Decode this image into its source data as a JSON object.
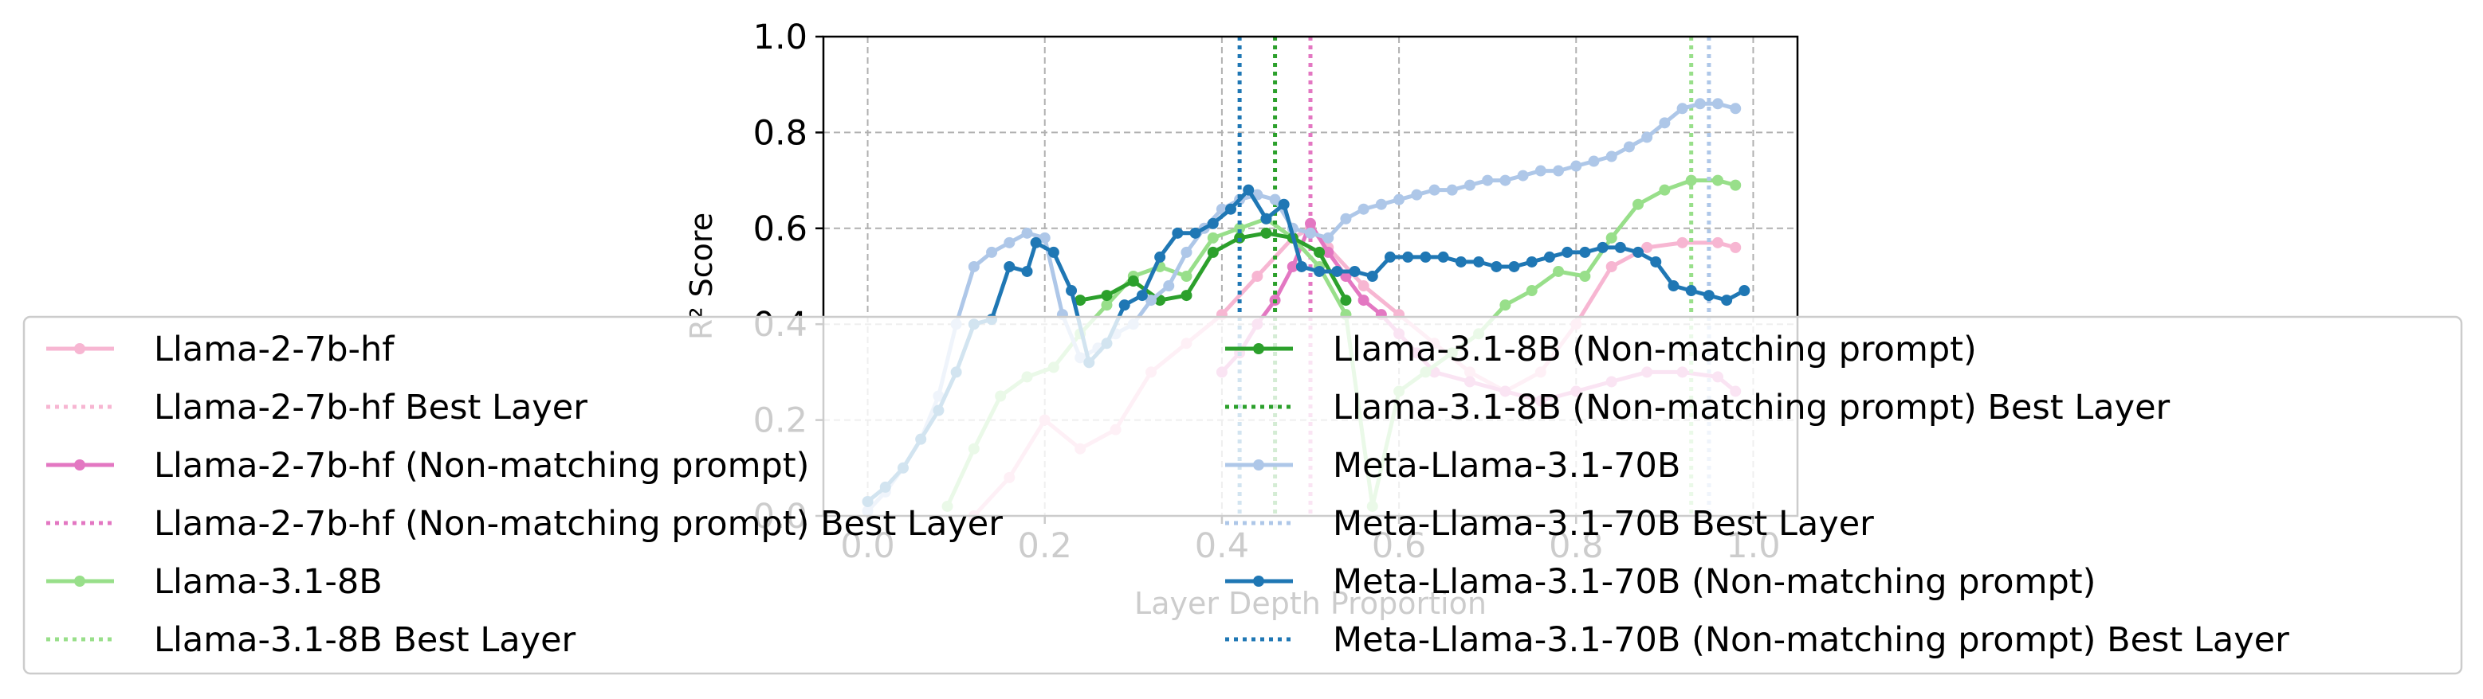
{
  "chart_data": {
    "type": "line",
    "title": "",
    "xlabel": "Layer Depth Proportion",
    "ylabel": "R² Score",
    "xlim": [
      -0.05,
      1.05
    ],
    "ylim": [
      0.0,
      1.0
    ],
    "x_ticks": [
      "0.0",
      "0.2",
      "0.4",
      "0.6",
      "0.8",
      "1.0"
    ],
    "y_ticks": [
      "0.0",
      "0.2",
      "0.4",
      "0.6",
      "0.8",
      "1.0"
    ],
    "grid": true,
    "legend_placement": "lower-center, two columns, overlapping the plot",
    "series": [
      {
        "name": "Llama-2-7b-hf",
        "color": "#f7b6d2",
        "x": [
          0.12,
          0.16,
          0.2,
          0.24,
          0.28,
          0.32,
          0.36,
          0.4,
          0.44,
          0.48,
          0.5,
          0.52,
          0.56,
          0.6,
          0.64,
          0.68,
          0.72,
          0.76,
          0.8,
          0.84,
          0.88,
          0.92,
          0.96,
          0.98
        ],
        "y": [
          0.0,
          0.08,
          0.2,
          0.14,
          0.18,
          0.3,
          0.36,
          0.42,
          0.5,
          0.58,
          0.6,
          0.56,
          0.48,
          0.42,
          0.36,
          0.3,
          0.26,
          0.3,
          0.4,
          0.52,
          0.56,
          0.57,
          0.57,
          0.56
        ]
      },
      {
        "name": "Llama-2-7b-hf Best Layer",
        "color": "#f7b6d2",
        "best_x": 0.5
      },
      {
        "name": "Llama-2-7b-hf (Non-matching prompt)",
        "color": "#e377c2",
        "x": [
          0.4,
          0.42,
          0.44,
          0.46,
          0.48,
          0.5,
          0.52,
          0.54,
          0.56,
          0.58,
          0.6,
          0.62,
          0.64,
          0.68,
          0.72,
          0.76,
          0.8,
          0.84,
          0.88,
          0.92,
          0.96,
          0.98
        ],
        "y": [
          0.3,
          0.34,
          0.4,
          0.45,
          0.52,
          0.61,
          0.55,
          0.5,
          0.45,
          0.42,
          0.38,
          0.34,
          0.3,
          0.28,
          0.26,
          0.24,
          0.26,
          0.28,
          0.3,
          0.3,
          0.29,
          0.26
        ]
      },
      {
        "name": "Llama-2-7b-hf (Non-matching prompt) Best Layer",
        "color": "#e377c2",
        "best_x": 0.5
      },
      {
        "name": "Llama-3.1-8B",
        "color": "#98df8a",
        "x": [
          0.09,
          0.12,
          0.15,
          0.18,
          0.21,
          0.24,
          0.27,
          0.3,
          0.33,
          0.36,
          0.39,
          0.42,
          0.45,
          0.48,
          0.51,
          0.54,
          0.57,
          0.6,
          0.63,
          0.66,
          0.69,
          0.72,
          0.75,
          0.78,
          0.81,
          0.84,
          0.87,
          0.9,
          0.93,
          0.96,
          0.98
        ],
        "y": [
          0.02,
          0.14,
          0.25,
          0.29,
          0.31,
          0.38,
          0.44,
          0.5,
          0.52,
          0.5,
          0.58,
          0.6,
          0.62,
          0.58,
          0.52,
          0.42,
          0.02,
          0.26,
          0.3,
          0.34,
          0.38,
          0.44,
          0.47,
          0.51,
          0.5,
          0.58,
          0.65,
          0.68,
          0.7,
          0.7,
          0.69
        ]
      },
      {
        "name": "Llama-3.1-8B Best Layer",
        "color": "#98df8a",
        "best_x": 0.93
      },
      {
        "name": "Llama-3.1-8B (Non-matching prompt)",
        "color": "#2ca02c",
        "x": [
          0.24,
          0.27,
          0.3,
          0.33,
          0.36,
          0.39,
          0.42,
          0.45,
          0.48,
          0.51,
          0.54
        ],
        "y": [
          0.45,
          0.46,
          0.49,
          0.45,
          0.46,
          0.55,
          0.58,
          0.59,
          0.58,
          0.55,
          0.45
        ]
      },
      {
        "name": "Llama-3.1-8B (Non-matching prompt) Best Layer",
        "color": "#2ca02c",
        "best_x": 0.46
      },
      {
        "name": "Meta-Llama-3.1-70B",
        "color": "#aec7e8",
        "x": [
          0.0,
          0.02,
          0.04,
          0.06,
          0.08,
          0.1,
          0.12,
          0.14,
          0.16,
          0.18,
          0.2,
          0.22,
          0.24,
          0.26,
          0.28,
          0.3,
          0.32,
          0.34,
          0.36,
          0.38,
          0.4,
          0.42,
          0.44,
          0.46,
          0.48,
          0.5,
          0.52,
          0.54,
          0.56,
          0.58,
          0.6,
          0.62,
          0.64,
          0.66,
          0.68,
          0.7,
          0.72,
          0.74,
          0.76,
          0.78,
          0.8,
          0.82,
          0.84,
          0.86,
          0.88,
          0.9,
          0.92,
          0.94,
          0.96,
          0.98
        ],
        "y": [
          0.01,
          0.05,
          0.1,
          0.16,
          0.25,
          0.4,
          0.52,
          0.55,
          0.57,
          0.59,
          0.58,
          0.42,
          0.33,
          0.35,
          0.38,
          0.4,
          0.45,
          0.48,
          0.55,
          0.6,
          0.64,
          0.66,
          0.67,
          0.66,
          0.6,
          0.59,
          0.58,
          0.62,
          0.64,
          0.65,
          0.66,
          0.67,
          0.68,
          0.68,
          0.69,
          0.7,
          0.7,
          0.71,
          0.72,
          0.72,
          0.73,
          0.74,
          0.75,
          0.77,
          0.79,
          0.82,
          0.85,
          0.86,
          0.86,
          0.85
        ]
      },
      {
        "name": "Meta-Llama-3.1-70B Best Layer",
        "color": "#aec7e8",
        "best_x": 0.95
      },
      {
        "name": "Meta-Llama-3.1-70B (Non-matching prompt)",
        "color": "#1f77b4",
        "x": [
          0.0,
          0.02,
          0.04,
          0.06,
          0.08,
          0.1,
          0.12,
          0.14,
          0.16,
          0.18,
          0.19,
          0.21,
          0.23,
          0.25,
          0.27,
          0.29,
          0.31,
          0.33,
          0.35,
          0.37,
          0.39,
          0.41,
          0.43,
          0.45,
          0.47,
          0.49,
          0.51,
          0.53,
          0.55,
          0.57,
          0.59,
          0.61,
          0.63,
          0.65,
          0.67,
          0.69,
          0.71,
          0.73,
          0.75,
          0.77,
          0.79,
          0.81,
          0.83,
          0.85,
          0.87,
          0.89,
          0.91,
          0.93,
          0.95,
          0.97,
          0.99
        ],
        "y": [
          0.03,
          0.06,
          0.1,
          0.16,
          0.22,
          0.3,
          0.4,
          0.41,
          0.52,
          0.51,
          0.57,
          0.55,
          0.47,
          0.32,
          0.36,
          0.44,
          0.46,
          0.54,
          0.59,
          0.59,
          0.61,
          0.64,
          0.68,
          0.62,
          0.65,
          0.52,
          0.51,
          0.51,
          0.51,
          0.5,
          0.54,
          0.54,
          0.54,
          0.54,
          0.53,
          0.53,
          0.52,
          0.52,
          0.53,
          0.54,
          0.55,
          0.55,
          0.56,
          0.56,
          0.55,
          0.53,
          0.48,
          0.47,
          0.46,
          0.45,
          0.47
        ]
      },
      {
        "name": "Meta-Llama-3.1-70B (Non-matching prompt) Best Layer",
        "color": "#1f77b4",
        "best_x": 0.42
      }
    ]
  }
}
